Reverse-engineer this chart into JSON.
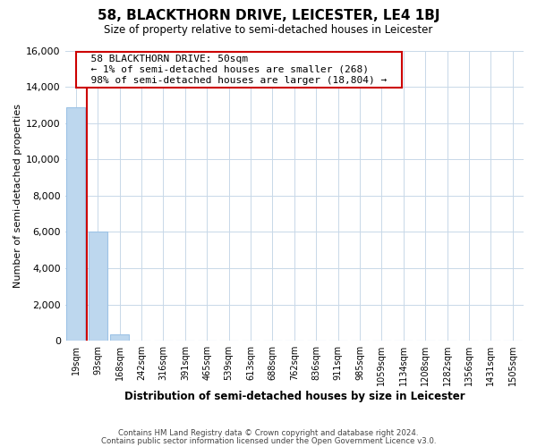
{
  "title": "58, BLACKTHORN DRIVE, LEICESTER, LE4 1BJ",
  "subtitle": "Size of property relative to semi-detached houses in Leicester",
  "xlabel": "Distribution of semi-detached houses by size in Leicester",
  "ylabel": "Number of semi-detached properties",
  "bar_labels": [
    "19sqm",
    "93sqm",
    "168sqm",
    "242sqm",
    "316sqm",
    "391sqm",
    "465sqm",
    "539sqm",
    "613sqm",
    "688sqm",
    "762sqm",
    "836sqm",
    "911sqm",
    "985sqm",
    "1059sqm",
    "1134sqm",
    "1208sqm",
    "1282sqm",
    "1356sqm",
    "1431sqm",
    "1505sqm"
  ],
  "bar_values": [
    12850,
    6020,
    370,
    0,
    0,
    0,
    0,
    0,
    0,
    0,
    0,
    0,
    0,
    0,
    0,
    0,
    0,
    0,
    0,
    0,
    0
  ],
  "bar_color": "#bdd7ee",
  "bar_edge_color": "#9dc3e6",
  "highlight_color": "#cc0000",
  "annotation_title": "58 BLACKTHORN DRIVE: 50sqm",
  "annotation_line1": "← 1% of semi-detached houses are smaller (268)",
  "annotation_line2": "98% of semi-detached houses are larger (18,804) →",
  "annotation_box_color": "#ffffff",
  "annotation_box_edge_color": "#cc0000",
  "ylim": [
    0,
    16000
  ],
  "yticks": [
    0,
    2000,
    4000,
    6000,
    8000,
    10000,
    12000,
    14000,
    16000
  ],
  "footer1": "Contains HM Land Registry data © Crown copyright and database right 2024.",
  "footer2": "Contains public sector information licensed under the Open Government Licence v3.0.",
  "bg_color": "#ffffff",
  "grid_color": "#c8d8e8"
}
